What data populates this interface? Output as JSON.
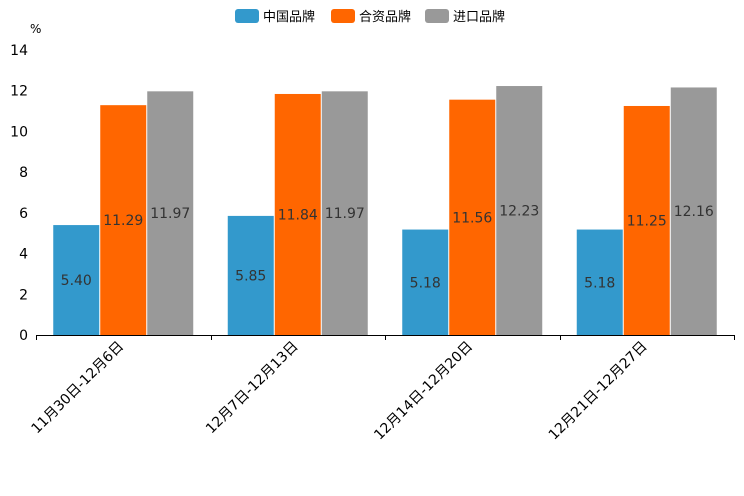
{
  "chart_data": {
    "type": "bar",
    "title": "",
    "xlabel": "",
    "ylabel": "%",
    "ylim": [
      0,
      14
    ],
    "yticks": [
      0,
      2,
      4,
      6,
      8,
      10,
      12,
      14
    ],
    "grid": false,
    "legend_position": "top-center",
    "categories": [
      "11月30日-12月6日",
      "12月7日-12月13日",
      "12月14日-12月20日",
      "12月21日-12月27日"
    ],
    "series": [
      {
        "name": "中国品牌",
        "color": "#3399cc",
        "values": [
          5.4,
          5.85,
          5.18,
          5.18
        ],
        "labels": [
          "5.40",
          "5.85",
          "5.18",
          "5.18"
        ]
      },
      {
        "name": "合资品牌",
        "color": "#ff6600",
        "values": [
          11.29,
          11.84,
          11.56,
          11.25
        ],
        "labels": [
          "11.29",
          "11.84",
          "11.56",
          "11.25"
        ]
      },
      {
        "name": "进口品牌",
        "color": "#999999",
        "values": [
          11.97,
          11.97,
          12.23,
          12.16
        ],
        "labels": [
          "11.97",
          "11.97",
          "12.23",
          "12.16"
        ]
      }
    ]
  }
}
